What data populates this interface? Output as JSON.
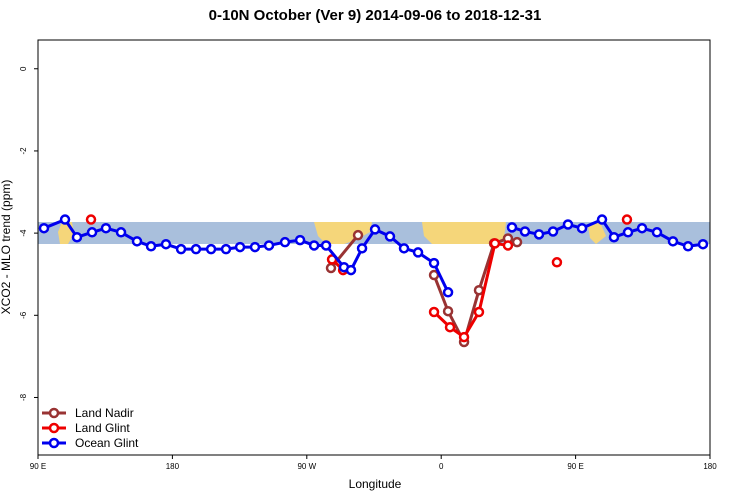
{
  "chart_data": {
    "type": "line",
    "title": "0-10N October (Ver 9)   2014-09-06 to 2018-12-31",
    "x_label": "Longitude",
    "y_label": "XCO2 - MLO trend (ppm)",
    "xlim": [
      90,
      540
    ],
    "ylim": [
      -9.4,
      0.7
    ],
    "xticks": [
      {
        "value": 90,
        "label": "90 E"
      },
      180,
      {
        "value": 270,
        "label": "90 W"
      },
      {
        "value": 360,
        "label": "0"
      },
      {
        "value": 450,
        "label": "90 E"
      },
      {
        "value": 540,
        "label": "180"
      }
    ],
    "yticks": [
      0,
      -2,
      -4,
      -6,
      -8
    ],
    "legend": "bottom-left",
    "series": [
      {
        "name": "Land Nadir",
        "color": "#993333",
        "x": [
          286.2,
          304.3,
          null,
          355.2,
          364.6,
          375.3,
          385.3,
          395.4,
          404.7,
          410.8
        ],
        "values": [
          -4.85,
          -4.05,
          null,
          -5.02,
          -5.9,
          -6.65,
          -5.39,
          -4.25,
          -4.13,
          -4.22
        ]
      },
      {
        "name": "Land Glint",
        "color": "#ee0000",
        "x": [
          125.5,
          null,
          286.9,
          294.3,
          null,
          355.2,
          365.9,
          375.3,
          385.3,
          396.0,
          404.7,
          null,
          437.5,
          null,
          484.4
        ],
        "values": [
          -3.67,
          null,
          -4.64,
          -4.9,
          null,
          -5.92,
          -6.29,
          -6.53,
          -5.92,
          -4.25,
          -4.3,
          null,
          -4.71,
          null,
          -3.67
        ]
      },
      {
        "name": "Ocean Glint",
        "color": "#0000ee",
        "x": [
          94.0,
          108.1,
          116.1,
          126.2,
          135.5,
          145.6,
          156.3,
          165.7,
          175.7,
          185.8,
          195.8,
          205.9,
          215.9,
          225.3,
          235.3,
          244.7,
          255.4,
          265.5,
          274.9,
          282.9,
          294.9,
          299.6,
          307.0,
          315.7,
          325.7,
          335.1,
          344.5,
          355.2,
          364.6,
          null,
          407.4,
          416.1,
          425.5,
          434.9,
          444.9,
          454.3,
          467.7,
          475.7,
          485.1,
          494.5,
          504.5,
          515.2,
          525.3,
          535.3
        ],
        "values": [
          -3.88,
          -3.67,
          -4.1,
          -3.98,
          -3.88,
          -3.98,
          -4.2,
          -4.32,
          -4.27,
          -4.39,
          -4.39,
          -4.39,
          -4.39,
          -4.34,
          -4.34,
          -4.3,
          -4.22,
          -4.17,
          -4.3,
          -4.3,
          -4.83,
          -4.9,
          -4.37,
          -3.91,
          -4.08,
          -4.37,
          -4.47,
          -4.73,
          -5.44,
          null,
          -3.86,
          -3.96,
          -4.03,
          -3.96,
          -3.79,
          -3.88,
          -3.67,
          -4.1,
          -3.98,
          -3.88,
          -3.98,
          -4.2,
          -4.32,
          -4.27
        ]
      }
    ]
  }
}
